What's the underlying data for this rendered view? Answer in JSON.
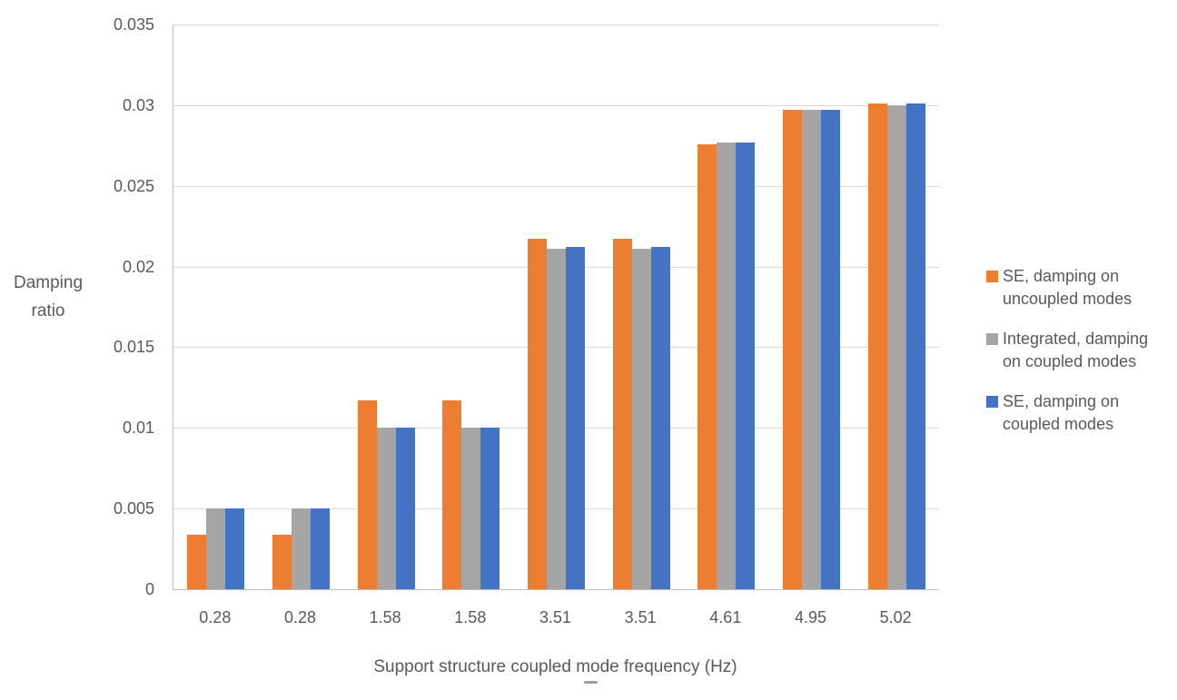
{
  "chart_data": {
    "type": "bar",
    "title": "",
    "xlabel": "Support structure coupled mode frequency (Hz)",
    "ylabel_lines": [
      "Damping",
      "ratio"
    ],
    "ylim": [
      0,
      0.035
    ],
    "ytick_step": 0.005,
    "yticks": [
      0,
      0.005,
      0.01,
      0.015,
      0.02,
      0.025,
      0.03,
      0.035
    ],
    "ytick_labels": [
      "0",
      "0.005",
      "0.01",
      "0.015",
      "0.02",
      "0.025",
      "0.03",
      "0.035"
    ],
    "grid": "horizontal",
    "legend_position": "right",
    "categories": [
      "0.28",
      "0.28",
      "1.58",
      "1.58",
      "3.51",
      "3.51",
      "4.61",
      "4.95",
      "5.02"
    ],
    "series": [
      {
        "name": "SE, damping on uncoupled modes",
        "legend_lines": [
          "SE, damping on",
          "uncoupled modes"
        ],
        "color": "#ED7D31",
        "values": [
          0.0034,
          0.0034,
          0.0117,
          0.0117,
          0.0217,
          0.0217,
          0.0276,
          0.0297,
          0.0301
        ]
      },
      {
        "name": "Integrated, damping on coupled modes",
        "legend_lines": [
          "Integrated, damping",
          "on coupled modes"
        ],
        "color": "#A5A5A5",
        "values": [
          0.005,
          0.005,
          0.01,
          0.01,
          0.0211,
          0.0211,
          0.0277,
          0.0297,
          0.03
        ]
      },
      {
        "name": "SE, damping on coupled modes",
        "legend_lines": [
          "SE, damping on",
          "coupled modes"
        ],
        "color": "#4472C4",
        "values": [
          0.005,
          0.005,
          0.01,
          0.01,
          0.0212,
          0.0212,
          0.0277,
          0.0297,
          0.0301
        ]
      }
    ],
    "colors": {
      "gridline": "#D9D9D9",
      "axis_line": "#BFBFBF",
      "text": "#595959"
    }
  }
}
